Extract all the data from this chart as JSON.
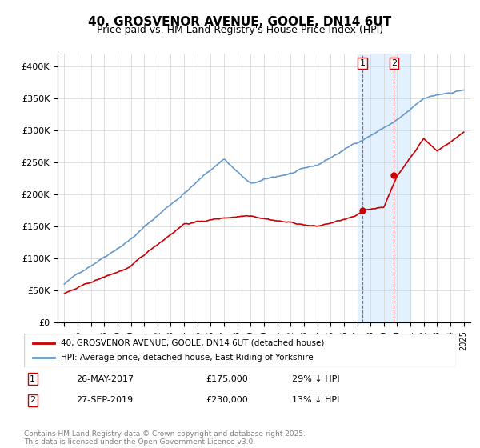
{
  "title": "40, GROSVENOR AVENUE, GOOLE, DN14 6UT",
  "subtitle": "Price paid vs. HM Land Registry's House Price Index (HPI)",
  "red_label": "40, GROSVENOR AVENUE, GOOLE, DN14 6UT (detached house)",
  "blue_label": "HPI: Average price, detached house, East Riding of Yorkshire",
  "transaction1_label": "1",
  "transaction1_date": "26-MAY-2017",
  "transaction1_price": "£175,000",
  "transaction1_hpi": "29% ↓ HPI",
  "transaction2_label": "2",
  "transaction2_date": "27-SEP-2019",
  "transaction2_price": "£230,000",
  "transaction2_hpi": "13% ↓ HPI",
  "marker1_x": 2017.4,
  "marker1_y_red": 175000,
  "marker2_x": 2019.75,
  "marker2_y_red": 230000,
  "ylim": [
    0,
    420000
  ],
  "xlim": [
    1994.5,
    2025.5
  ],
  "footer": "Contains HM Land Registry data © Crown copyright and database right 2025.\nThis data is licensed under the Open Government Licence v3.0.",
  "red_color": "#cc0000",
  "blue_color": "#6699cc",
  "highlight_color": "#ddeeff",
  "highlight_x1": 2017.0,
  "highlight_x2": 2021.0,
  "yticks": [
    0,
    50000,
    100000,
    150000,
    200000,
    250000,
    300000,
    350000,
    400000
  ],
  "ytick_labels": [
    "£0",
    "£50K",
    "£100K",
    "£150K",
    "£200K",
    "£250K",
    "£300K",
    "£350K",
    "£400K"
  ]
}
